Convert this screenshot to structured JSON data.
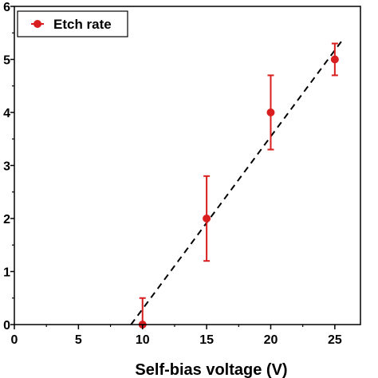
{
  "chart_data": {
    "type": "scatter",
    "xlabel": "Self-bias voltage (V)",
    "ylabel": "",
    "xlim": [
      0,
      27
    ],
    "ylim": [
      0,
      6
    ],
    "x_ticks": [
      0,
      5,
      10,
      15,
      20,
      25
    ],
    "y_ticks": [
      0,
      1,
      2,
      3,
      4,
      5,
      6
    ],
    "grid": false,
    "legend_position": "top-left",
    "series": [
      {
        "name": "Etch rate",
        "color": "#d81e1e",
        "marker": "circle",
        "x": [
          10,
          15,
          20,
          25
        ],
        "y": [
          0,
          2,
          4,
          5
        ],
        "yerr": [
          0.5,
          0.8,
          0.7,
          0.3
        ]
      }
    ],
    "fit_line": {
      "style": "dashed",
      "color": "#000000",
      "x": [
        9.1,
        25.7
      ],
      "y": [
        0,
        5.4
      ]
    }
  }
}
